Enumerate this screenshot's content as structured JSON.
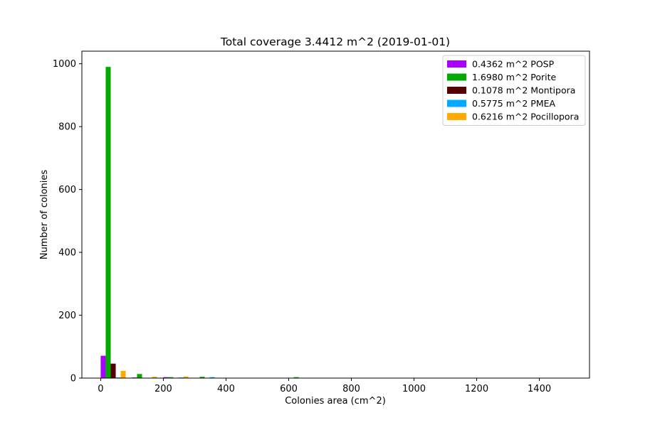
{
  "chart_data": {
    "type": "bar",
    "title": "Total coverage 3.4412 m^2 (2019-01-01)",
    "xlabel": "Colonies area (cm^2)",
    "ylabel": "Number of colonies",
    "xlim": [
      -60,
      1560
    ],
    "ylim": [
      0,
      1040
    ],
    "xticks": [
      0,
      200,
      400,
      600,
      800,
      1000,
      1200,
      1400
    ],
    "yticks": [
      0,
      200,
      400,
      600,
      800,
      1000
    ],
    "grid": false,
    "legend_position": "top-right",
    "bin_edges": [
      0,
      100,
      200,
      300,
      400,
      500,
      600,
      700,
      800,
      900,
      1000,
      1100,
      1200,
      1300,
      1400,
      1500
    ],
    "series": [
      {
        "name": "0.4362 m^2 POSP",
        "color": "#aa00ff",
        "values": [
          71,
          2,
          3,
          1,
          0,
          0,
          0,
          0,
          0,
          0,
          0,
          0,
          0,
          0,
          0
        ]
      },
      {
        "name": "1.6980 m^2 Porite",
        "color": "#00aa00",
        "values": [
          990,
          13,
          3,
          4,
          0,
          0,
          3,
          0,
          0,
          0,
          0,
          0,
          0,
          0,
          0
        ]
      },
      {
        "name": "0.1078 m^2 Montipora",
        "color": "#550000",
        "values": [
          46,
          1,
          0,
          0,
          0,
          0,
          0,
          0,
          0,
          0,
          0,
          0,
          0,
          0,
          0
        ]
      },
      {
        "name": "0.5775 m^2 PMEA",
        "color": "#00aaff",
        "values": [
          2,
          1,
          2,
          3,
          0,
          0,
          0,
          0,
          0,
          0,
          0,
          0,
          0,
          0,
          0
        ]
      },
      {
        "name": "0.6216 m^2 Pocillopora",
        "color": "#ffaa00",
        "values": [
          23,
          4,
          5,
          0,
          0,
          0,
          0,
          0,
          0,
          0,
          0,
          0,
          0,
          0,
          0
        ]
      }
    ]
  }
}
